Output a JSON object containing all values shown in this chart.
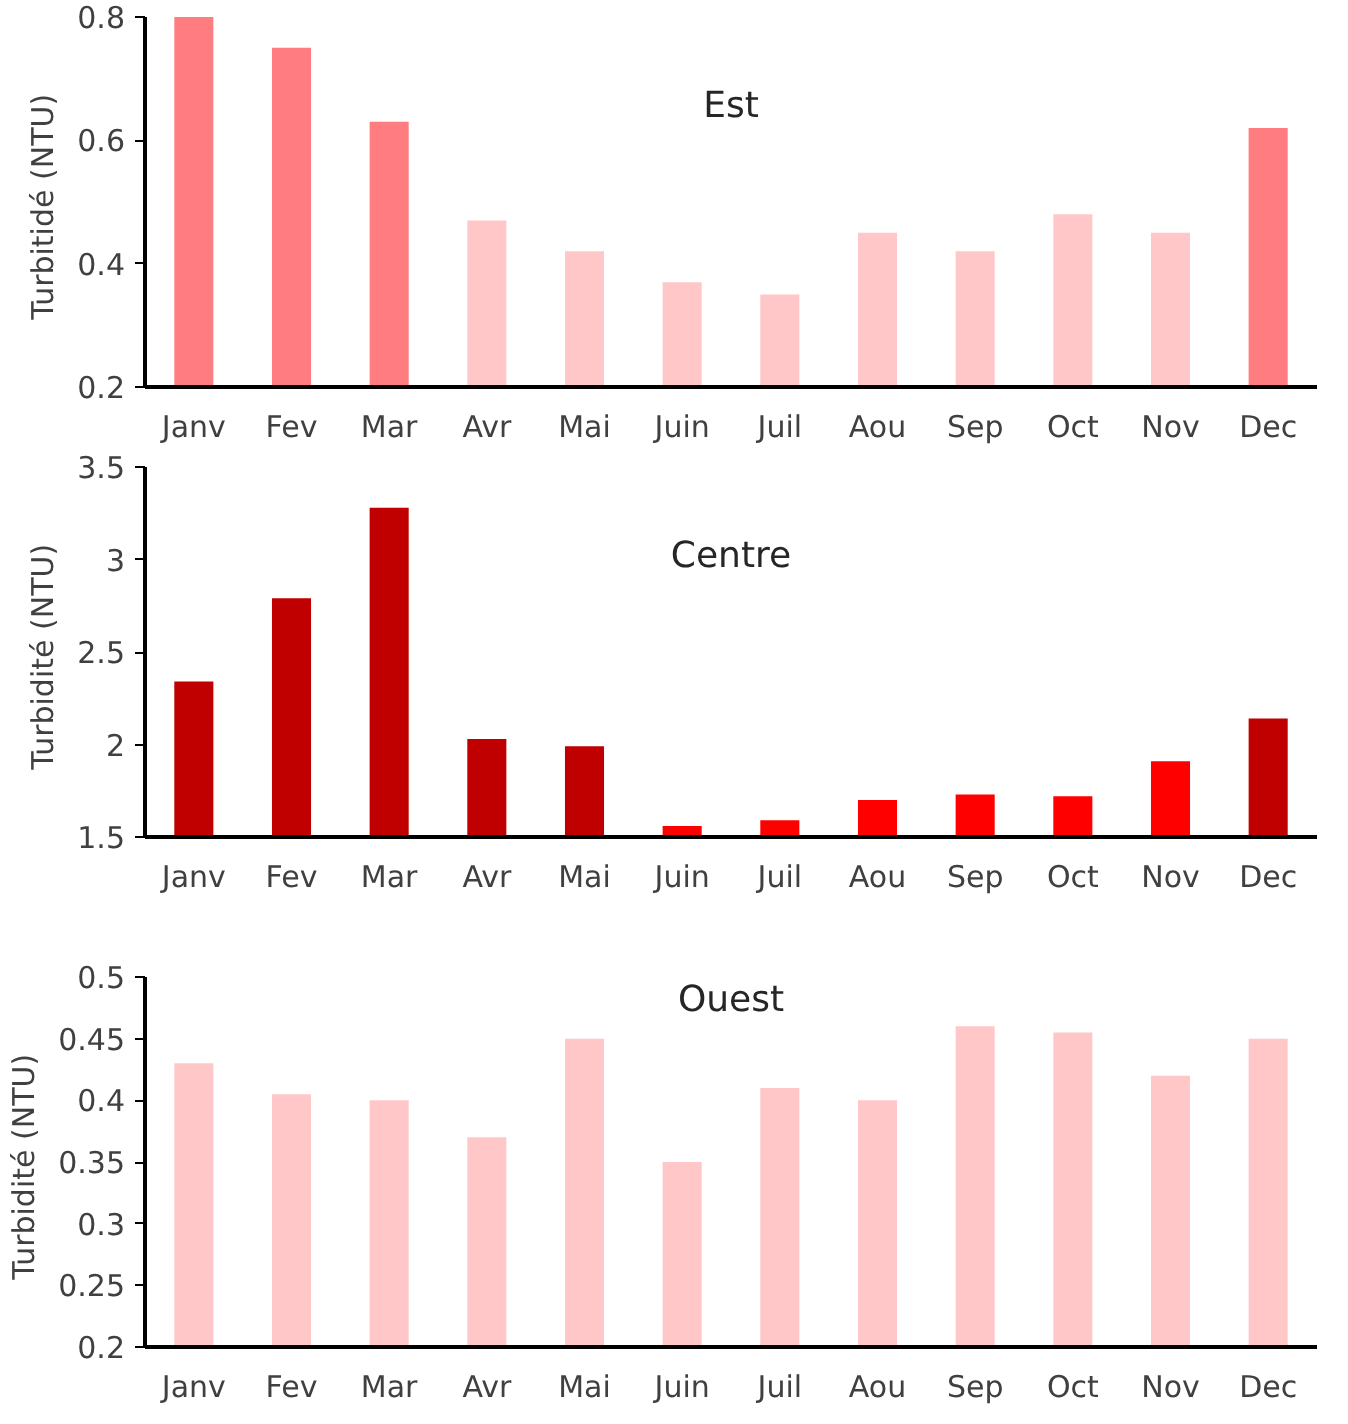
{
  "chart_data": [
    {
      "type": "bar",
      "title": "Est",
      "ylabel": "Turbitidé  (NTU)",
      "categories": [
        "Janv",
        "Fev",
        "Mar",
        "Avr",
        "Mai",
        "Juin",
        "Juil",
        "Aou",
        "Sep",
        "Oct",
        "Nov",
        "Dec"
      ],
      "values": [
        0.8,
        0.75,
        0.63,
        0.47,
        0.42,
        0.37,
        0.35,
        0.45,
        0.42,
        0.48,
        0.45,
        0.62
      ],
      "colors": [
        "#ff7c80",
        "#ff7c80",
        "#ff7c80",
        "#ffc7c7",
        "#ffc7c7",
        "#ffc7c7",
        "#ffc7c7",
        "#ffc7c7",
        "#ffc7c7",
        "#ffc7c7",
        "#ffc7c7",
        "#ff7c80"
      ],
      "ylim": [
        0.2,
        0.8
      ],
      "yticks": [
        0.2,
        0.4,
        0.6,
        0.8
      ],
      "grid": false
    },
    {
      "type": "bar",
      "title": "Centre",
      "ylabel": "Turbidité  (NTU)",
      "categories": [
        "Janv",
        "Fev",
        "Mar",
        "Avr",
        "Mai",
        "Juin",
        "Juil",
        "Aou",
        "Sep",
        "Oct",
        "Nov",
        "Dec"
      ],
      "values": [
        2.34,
        2.79,
        3.28,
        2.03,
        1.99,
        1.56,
        1.59,
        1.7,
        1.73,
        1.72,
        1.91,
        2.14
      ],
      "colors": [
        "#c00000",
        "#c00000",
        "#c00000",
        "#c00000",
        "#c00000",
        "#ff0000",
        "#ff0000",
        "#ff0000",
        "#ff0000",
        "#ff0000",
        "#ff0000",
        "#c00000"
      ],
      "ylim": [
        1.5,
        3.5
      ],
      "yticks": [
        1.5,
        2,
        2.5,
        3,
        3.5
      ],
      "grid": false
    },
    {
      "type": "bar",
      "title": "Ouest",
      "ylabel": "Turbidité  (NTU)",
      "categories": [
        "Janv",
        "Fev",
        "Mar",
        "Avr",
        "Mai",
        "Juin",
        "Juil",
        "Aou",
        "Sep",
        "Oct",
        "Nov",
        "Dec"
      ],
      "values": [
        0.43,
        0.405,
        0.4,
        0.37,
        0.45,
        0.35,
        0.41,
        0.4,
        0.46,
        0.455,
        0.42,
        0.45
      ],
      "colors": [
        "#ffc7c7",
        "#ffc7c7",
        "#ffc7c7",
        "#ffc7c7",
        "#ffc7c7",
        "#ffc7c7",
        "#ffc7c7",
        "#ffc7c7",
        "#ffc7c7",
        "#ffc7c7",
        "#ffc7c7",
        "#ffc7c7"
      ],
      "ylim": [
        0.2,
        0.5
      ],
      "yticks": [
        0.2,
        0.25,
        0.3,
        0.35,
        0.4,
        0.45,
        0.5
      ],
      "grid": false
    }
  ]
}
